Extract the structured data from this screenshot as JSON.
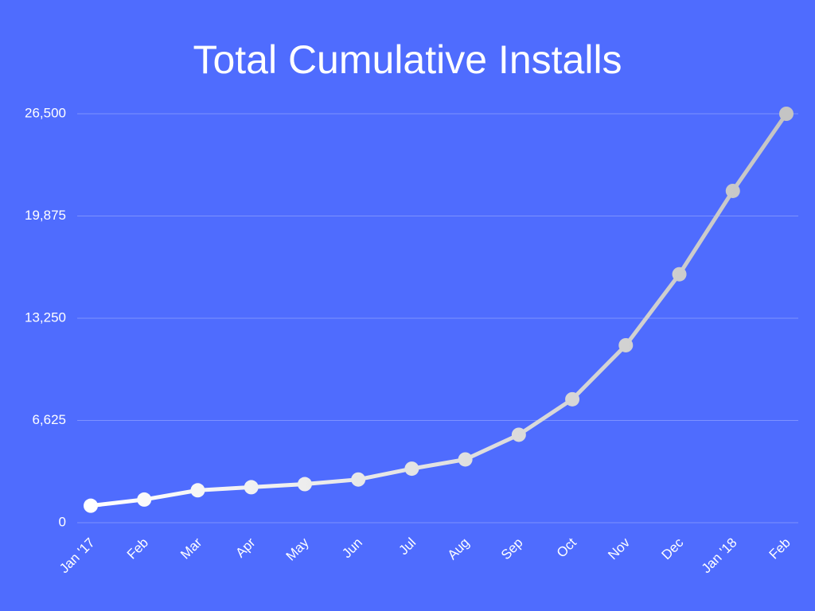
{
  "chart_data": {
    "type": "line",
    "title": "Total Cumulative Installs",
    "categories": [
      "Jan '17",
      "Feb",
      "Mar",
      "Apr",
      "May",
      "Jun",
      "Jul",
      "Aug",
      "Sep",
      "Oct",
      "Nov",
      "Dec",
      "Jan '18",
      "Feb"
    ],
    "series": [
      {
        "color": "#c4c4c4",
        "values": [
          1100,
          1500,
          2100,
          2300,
          2500,
          2800,
          3500,
          4100,
          5700,
          8000,
          11500,
          16100,
          21500,
          26500
        ]
      }
    ],
    "ylim": [
      0,
      26500
    ],
    "yticks": [
      0,
      {
        "value": 6625,
        "label": "6,625"
      },
      {
        "value": 13250,
        "label": "13,250"
      },
      {
        "value": 19875,
        "label": "19,875"
      },
      {
        "value": 26500,
        "label": "26,500"
      }
    ],
    "grid": true
  }
}
